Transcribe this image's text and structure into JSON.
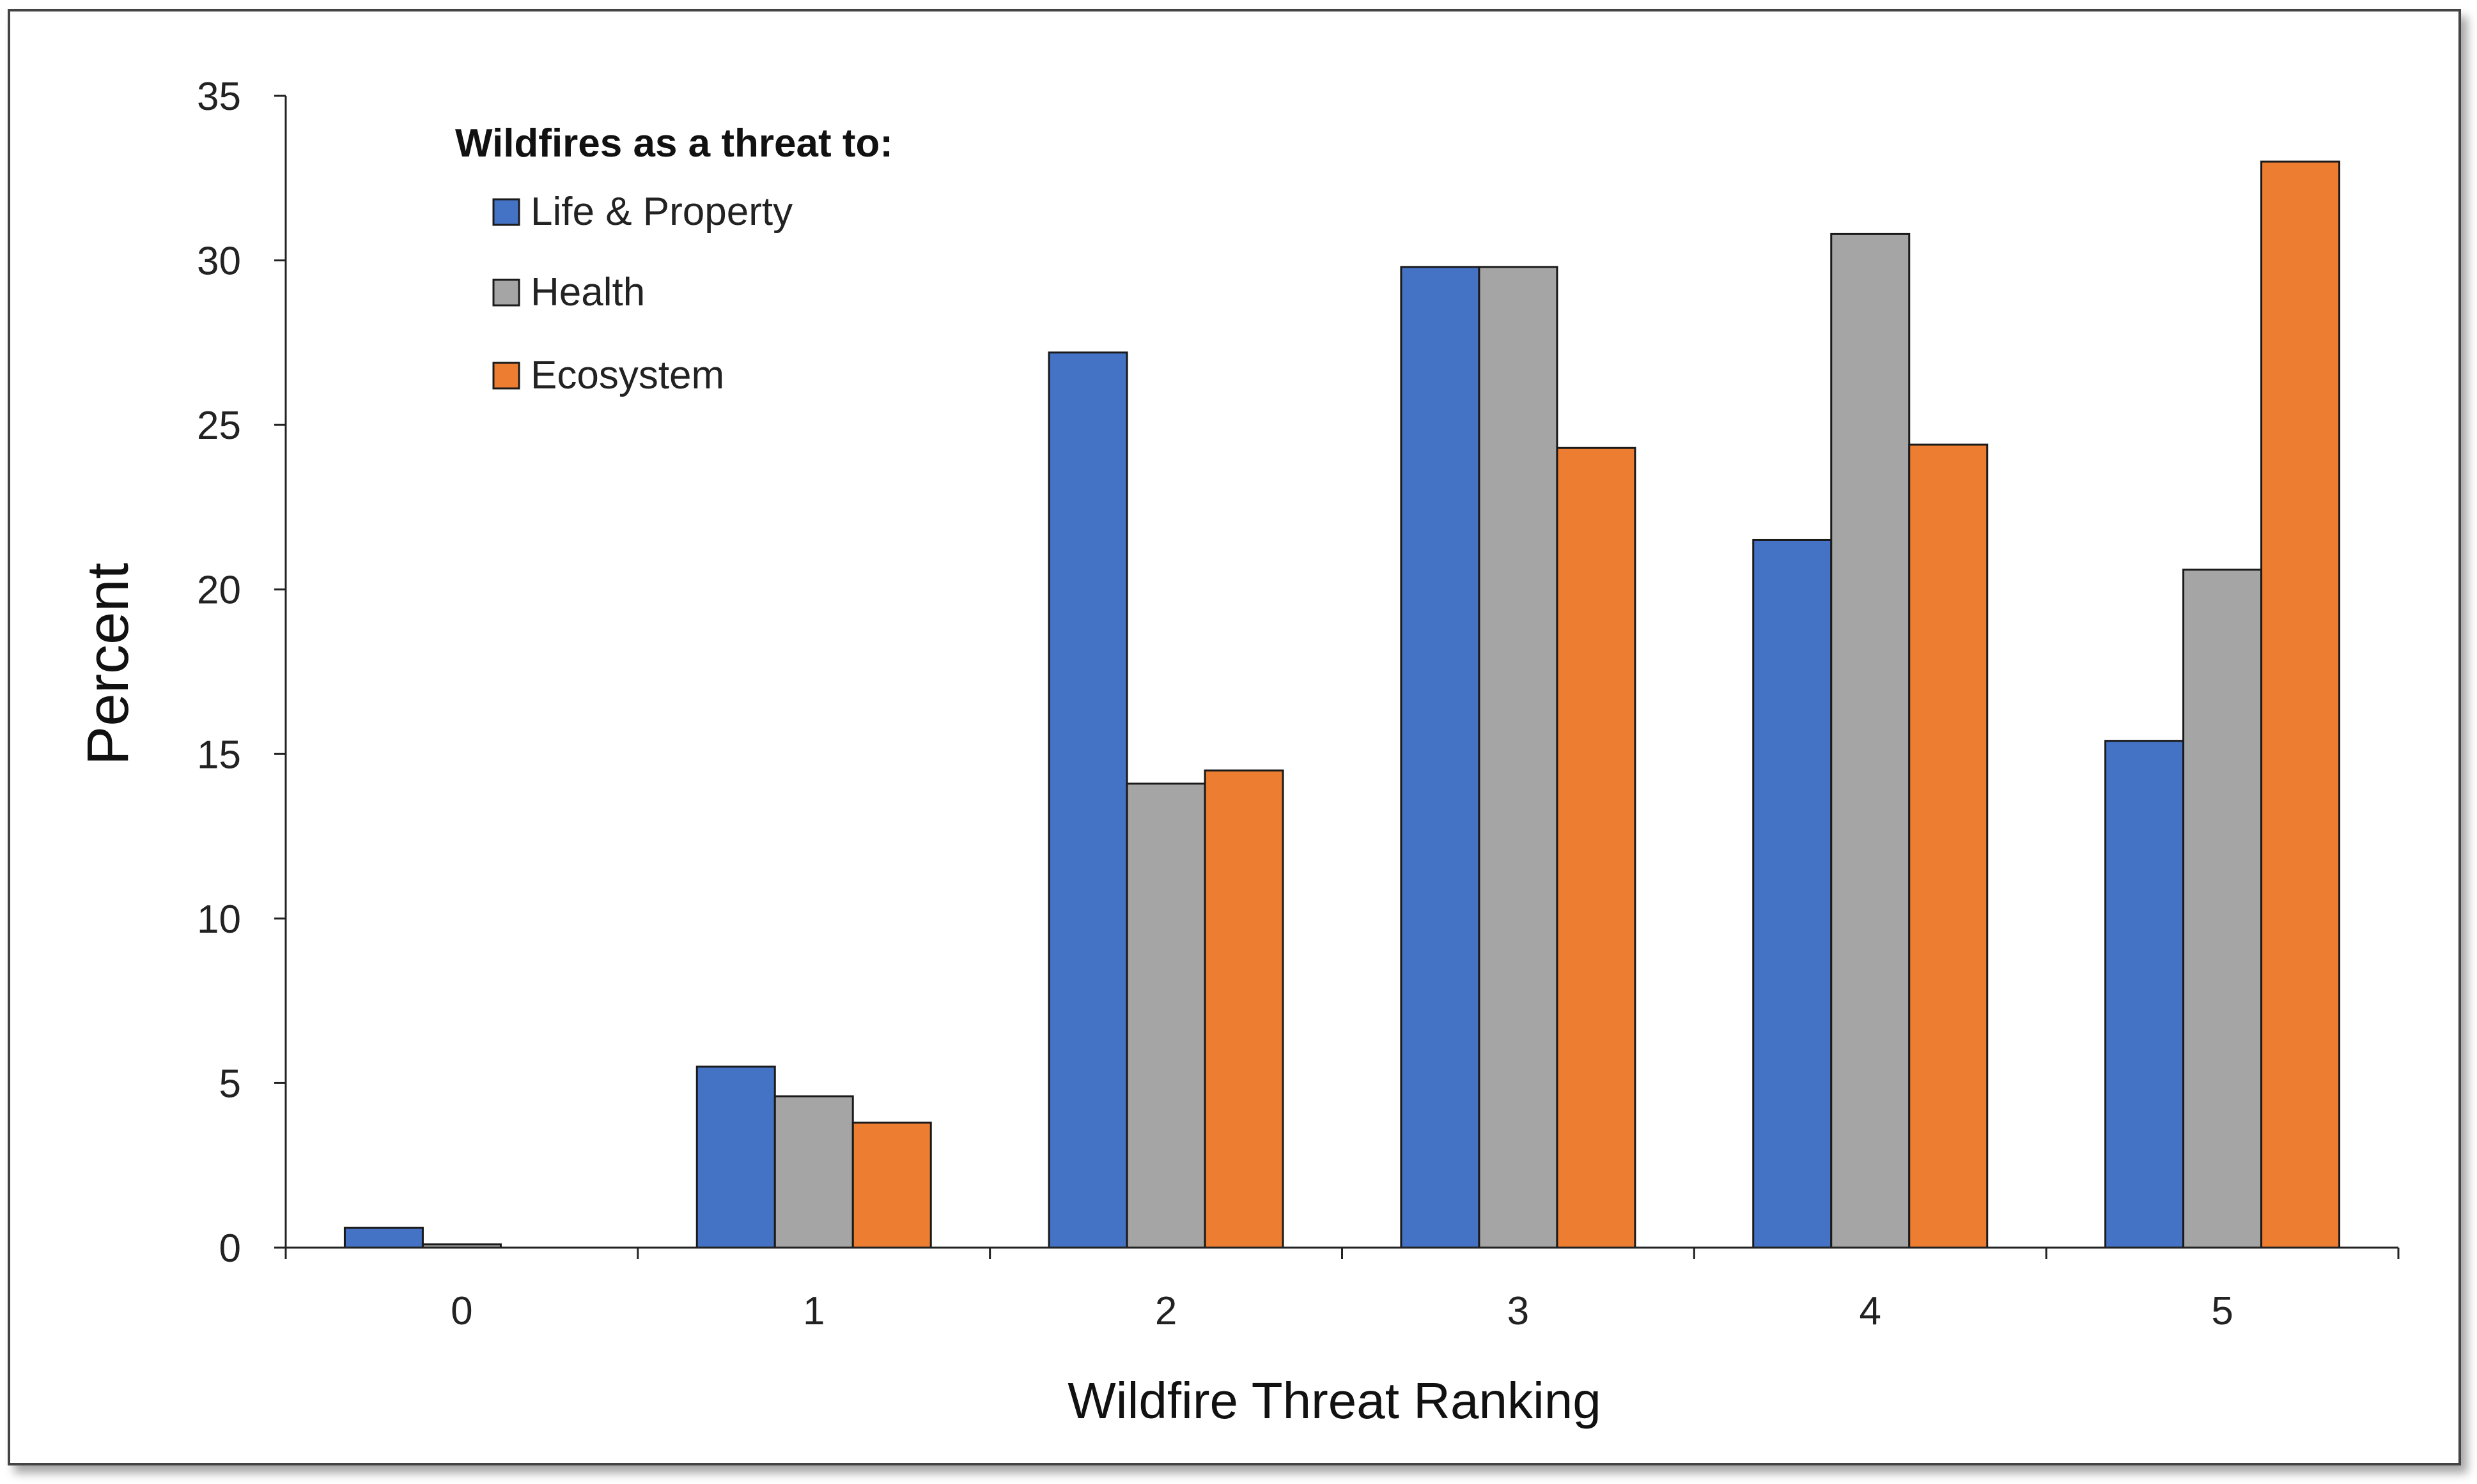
{
  "chart_data": {
    "type": "bar",
    "title": "",
    "xlabel": "Wildfire Threat Ranking",
    "ylabel": "Percent",
    "ylim": [
      0,
      35
    ],
    "yticks": [
      0,
      5,
      10,
      15,
      20,
      25,
      30,
      35
    ],
    "categories": [
      "0",
      "1",
      "2",
      "3",
      "4",
      "5"
    ],
    "legend_title": "Wildfires as a threat to:",
    "legend_position": "top-left",
    "grid": false,
    "series": [
      {
        "name": "Life & Property",
        "color": "#4472C4",
        "values": [
          0.6,
          5.5,
          27.2,
          29.8,
          21.5,
          15.4
        ]
      },
      {
        "name": "Health",
        "color": "#A5A5A5",
        "values": [
          0.1,
          4.6,
          14.1,
          29.8,
          30.8,
          20.6
        ]
      },
      {
        "name": "Ecosystem",
        "color": "#ED7D31",
        "values": [
          0.0,
          3.8,
          14.5,
          24.3,
          24.4,
          33.0
        ]
      }
    ]
  }
}
